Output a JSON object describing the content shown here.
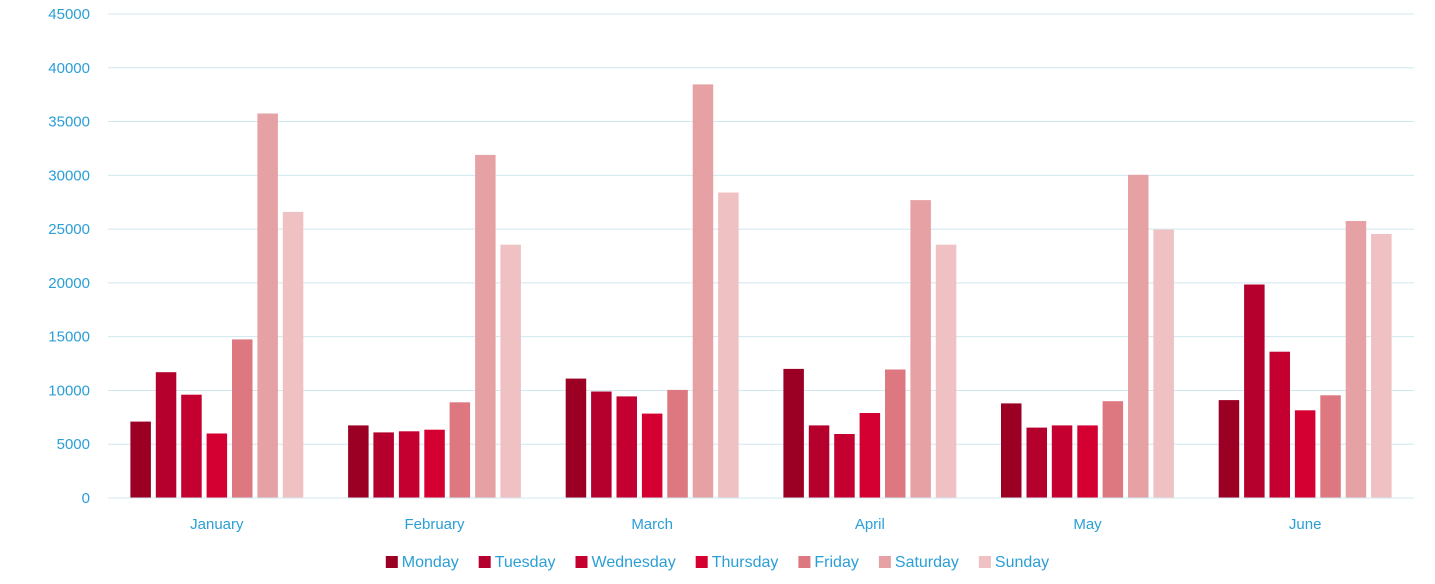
{
  "chart_data": {
    "type": "bar",
    "categories": [
      "January",
      "February",
      "March",
      "April",
      "May",
      "June"
    ],
    "series": [
      {
        "name": "Monday",
        "color": "#9b0024",
        "values": [
          7100,
          6750,
          11100,
          12000,
          8800,
          9100
        ]
      },
      {
        "name": "Tuesday",
        "color": "#b5002d",
        "values": [
          11700,
          6100,
          9900,
          6750,
          6550,
          19850
        ]
      },
      {
        "name": "Wednesday",
        "color": "#c40030",
        "values": [
          9600,
          6200,
          9450,
          5950,
          6750,
          13600
        ]
      },
      {
        "name": "Thursday",
        "color": "#d40032",
        "values": [
          6000,
          6350,
          7850,
          7900,
          6750,
          8150
        ]
      },
      {
        "name": "Friday",
        "color": "#dd7780",
        "values": [
          14750,
          8900,
          10050,
          11950,
          9000,
          9550
        ]
      },
      {
        "name": "Saturday",
        "color": "#e6a1a5",
        "values": [
          35750,
          31900,
          38450,
          27700,
          30050,
          25750
        ]
      },
      {
        "name": "Sunday",
        "color": "#efc1c3",
        "values": [
          26600,
          23550,
          28400,
          23550,
          24950,
          24550
        ]
      }
    ],
    "ylim": [
      0,
      45000
    ],
    "yticks": [
      "0",
      "5000",
      "10000",
      "15000",
      "20000",
      "25000",
      "30000",
      "35000",
      "40000",
      "45000"
    ],
    "grid": true,
    "legend_position": "bottom",
    "text_color": "#2a9fd6",
    "grid_color": "#d0e8ef"
  }
}
